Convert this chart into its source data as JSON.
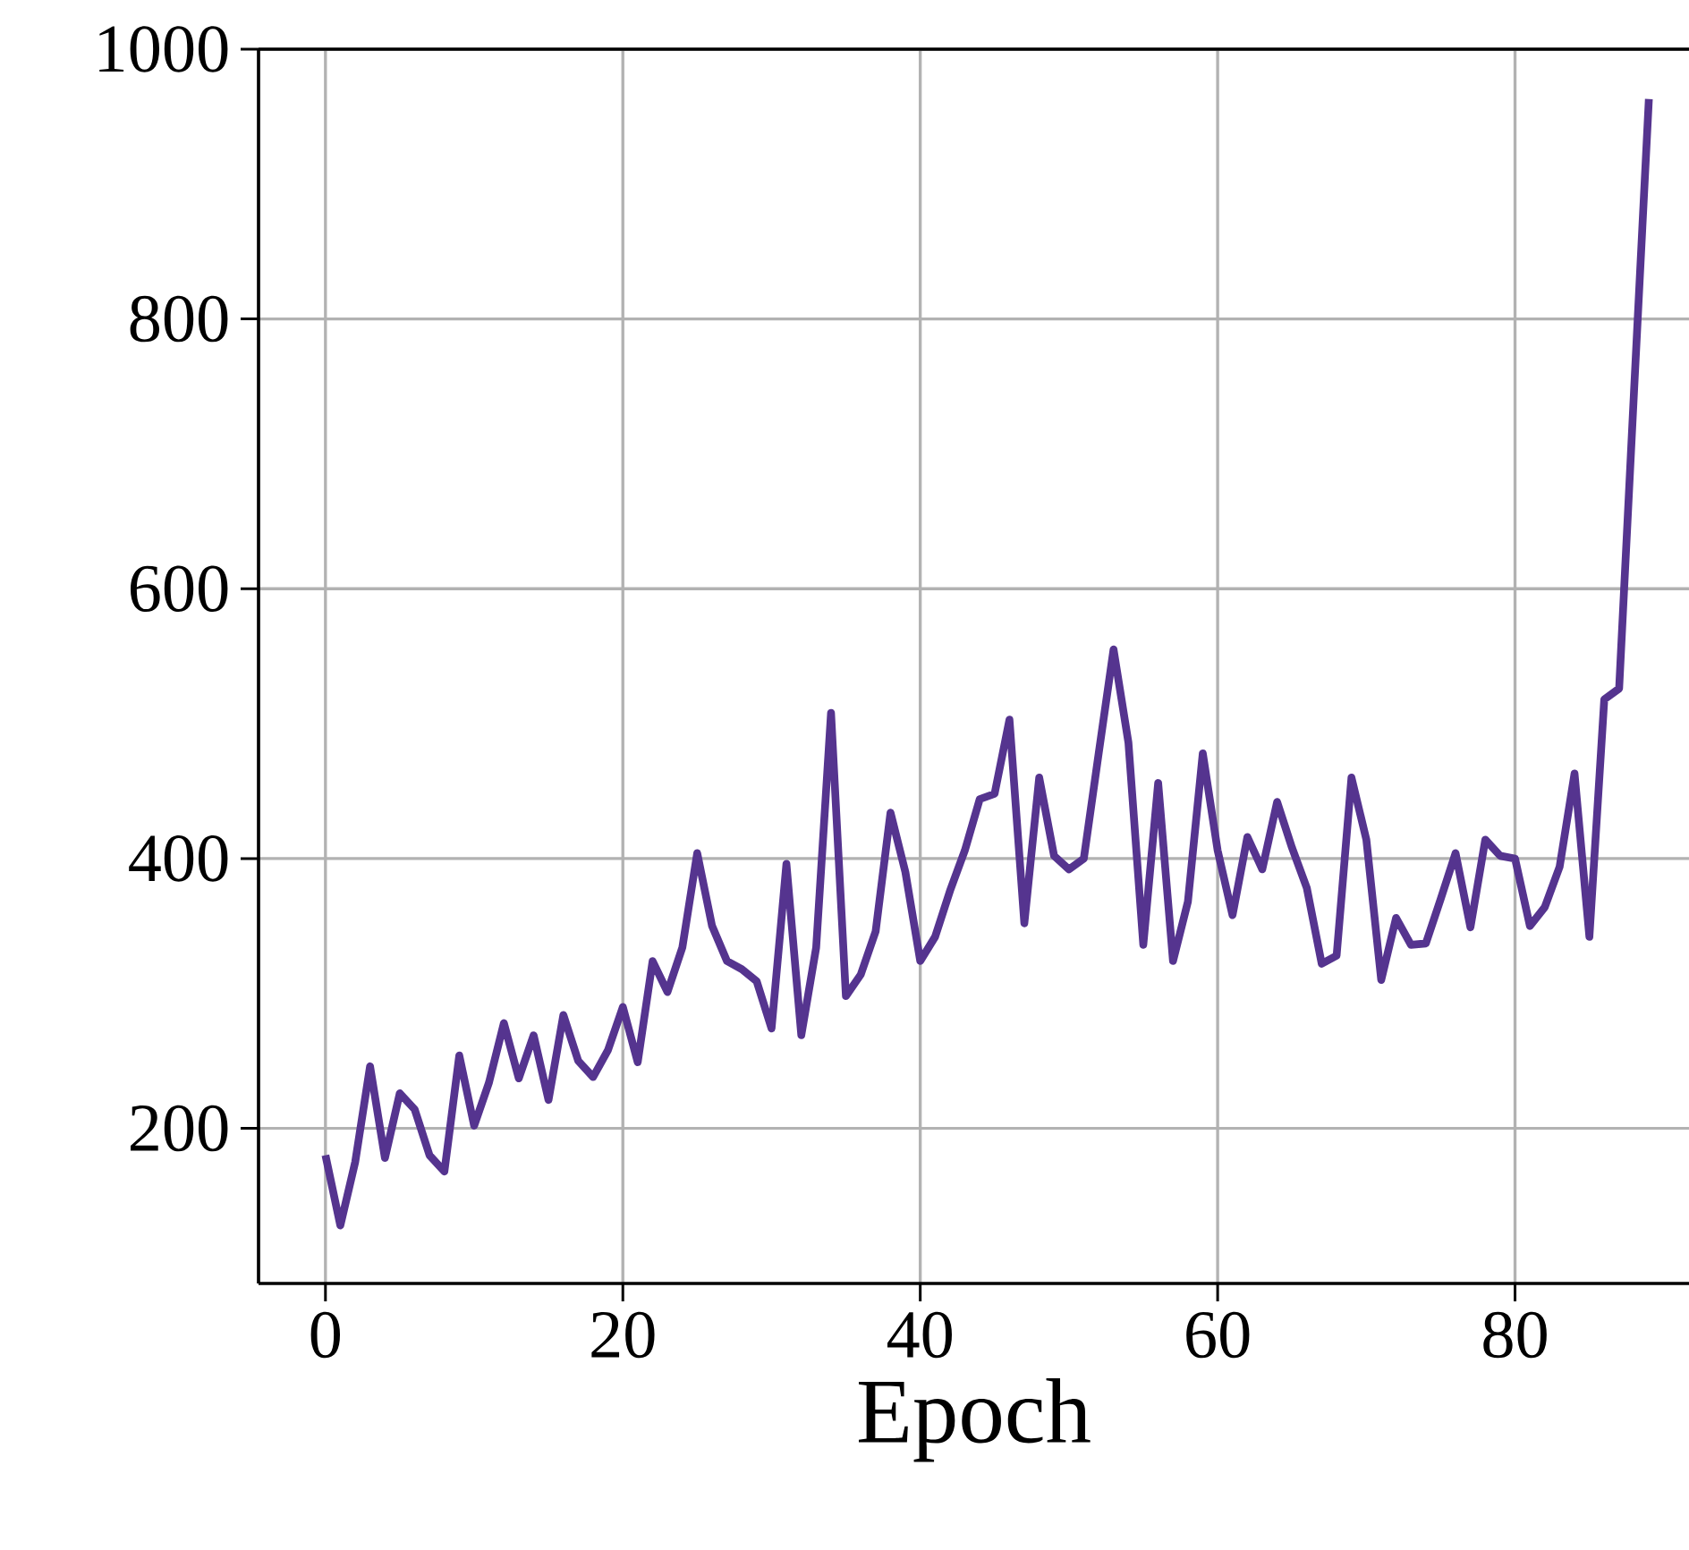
{
  "chart_data": {
    "type": "line",
    "xlabel": "Epoch",
    "x": [
      0,
      1,
      2,
      3,
      4,
      5,
      6,
      7,
      8,
      9,
      10,
      11,
      12,
      13,
      14,
      15,
      16,
      17,
      18,
      19,
      20,
      21,
      22,
      23,
      24,
      25,
      26,
      27,
      28,
      29,
      30,
      31,
      32,
      33,
      34,
      35,
      36,
      37,
      38,
      39,
      40,
      41,
      42,
      43,
      44,
      45,
      46,
      47,
      48,
      49,
      50,
      51,
      52,
      53,
      54,
      55,
      56,
      57,
      58,
      59,
      60,
      61,
      62,
      63,
      64,
      65,
      66,
      67,
      68,
      69,
      70,
      71,
      72,
      73,
      74,
      75,
      76,
      77,
      78,
      79,
      80,
      81,
      82,
      83,
      84,
      85,
      86,
      87,
      88,
      89
    ],
    "series": [
      {
        "color": "#55348f",
        "values": [
          180,
          128,
          175,
          246,
          178,
          226,
          214,
          180,
          168,
          254,
          202,
          234,
          278,
          237,
          269,
          221,
          284,
          250,
          238,
          258,
          290,
          249,
          324,
          301,
          334,
          404,
          350,
          324,
          318,
          309,
          274,
          396,
          269,
          334,
          508,
          298,
          314,
          346,
          434,
          390,
          324,
          342,
          376,
          406,
          444,
          448,
          503,
          352,
          460,
          402,
          392,
          400,
          478,
          555,
          486,
          336,
          456,
          324,
          368,
          478,
          406,
          358,
          416,
          392,
          442,
          408,
          378,
          322,
          328,
          460,
          414,
          310,
          356,
          336,
          337,
          370,
          404,
          349,
          414,
          402,
          400,
          350,
          364,
          394,
          463,
          342,
          518,
          526,
          746,
          963
        ]
      }
    ],
    "xlim": [
      -4.5,
      91.7
    ],
    "ylim": [
      85,
      1000
    ],
    "xticks": [
      0,
      20,
      40,
      60,
      80
    ],
    "yticks": [
      200,
      400,
      600,
      800,
      1000
    ],
    "grid": true,
    "line_style": "solid",
    "marker": "none"
  }
}
